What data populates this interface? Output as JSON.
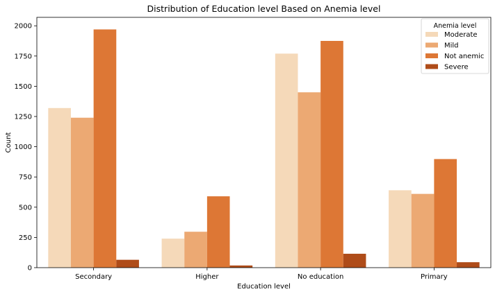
{
  "chart_data": {
    "type": "bar",
    "title": "Distribution of Education level Based on Anemia level",
    "xlabel": "Education level",
    "ylabel": "Count",
    "categories": [
      "Secondary",
      "Higher",
      "No education",
      "Primary"
    ],
    "series": [
      {
        "name": "Moderate",
        "color": "#f5d9b9",
        "values": [
          1320,
          240,
          1770,
          640
        ]
      },
      {
        "name": "Mild",
        "color": "#eca973",
        "values": [
          1240,
          297,
          1450,
          610
        ]
      },
      {
        "name": "Not anemic",
        "color": "#dd7735",
        "values": [
          1970,
          590,
          1875,
          898
        ]
      },
      {
        "name": "Severe",
        "color": "#af4c19",
        "values": [
          65,
          18,
          115,
          45
        ]
      }
    ],
    "ylim": [
      0,
      2070
    ],
    "yticks": [
      0,
      250,
      500,
      750,
      1000,
      1250,
      1500,
      1750,
      2000
    ],
    "ytick_labels": [
      "0",
      "250",
      "500",
      "750",
      "1000",
      "1250",
      "1500",
      "1750",
      "2000"
    ],
    "legend": {
      "title": "Anemia level",
      "position": "top-right"
    },
    "grid": false
  }
}
